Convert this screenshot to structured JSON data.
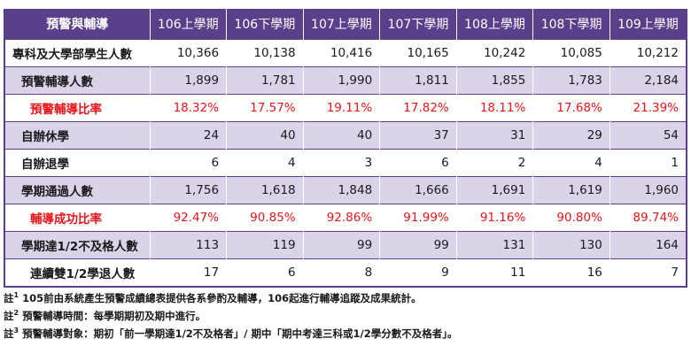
{
  "table": {
    "header": [
      "預警與輔導",
      "106上學期",
      "106下學期",
      "107上學期",
      "107下學期",
      "108上學期",
      "108下學期",
      "109上學期"
    ],
    "rows": [
      {
        "label": "專科及大學部學生人數",
        "values": [
          "10,366",
          "10,138",
          "10,416",
          "10,165",
          "10,242",
          "10,085",
          "10,212"
        ]
      },
      {
        "label": "預警輔導人數",
        "values": [
          "1,899",
          "1,781",
          "1,990",
          "1,811",
          "1,855",
          "1,783",
          "2,184"
        ]
      },
      {
        "label": "預警輔導比率",
        "values": [
          "18.32%",
          "17.57%",
          "19.11%",
          "17.82%",
          "18.11%",
          "17.68%",
          "21.39%"
        ]
      },
      {
        "label": "自辦休學",
        "values": [
          "24",
          "40",
          "40",
          "37",
          "31",
          "29",
          "54"
        ]
      },
      {
        "label": "自辦退學",
        "values": [
          "6",
          "4",
          "3",
          "6",
          "2",
          "4",
          "1"
        ]
      },
      {
        "label": "學期通過人數",
        "values": [
          "1,756",
          "1,618",
          "1,848",
          "1,666",
          "1,691",
          "1,619",
          "1,960"
        ]
      },
      {
        "label": "輔導成功比率",
        "values": [
          "92.47%",
          "90.85%",
          "92.86%",
          "91.99%",
          "91.16%",
          "90.80%",
          "89.74%"
        ]
      },
      {
        "label": "學期達1/2不及格人數",
        "values": [
          "113",
          "119",
          "99",
          "99",
          "131",
          "130",
          "164"
        ]
      },
      {
        "label": "連續雙1/2學退人數",
        "values": [
          "17",
          "6",
          "8",
          "9",
          "11",
          "16",
          "7"
        ]
      }
    ]
  },
  "notes": [
    {
      "prefix": "註",
      "num": "1",
      "text": " 105前由系統產生預警成績總表提供各系參酌及輔導，106起進行輔導追蹤及成果統計。"
    },
    {
      "prefix": "註",
      "num": "2",
      "text": " 預警輔導時間：每學期期初及期中進行。"
    },
    {
      "prefix": "註",
      "num": "3",
      "text": " 預警輔導對象：期初「前一學期達1/2不及格者」/ 期中「期中考達三科或1/2學分數不及格者」。"
    }
  ],
  "colors": {
    "header_bg": "#5a3f8a",
    "shade_bg": "#dcd2ea",
    "highlight_text": "#e8151a"
  }
}
